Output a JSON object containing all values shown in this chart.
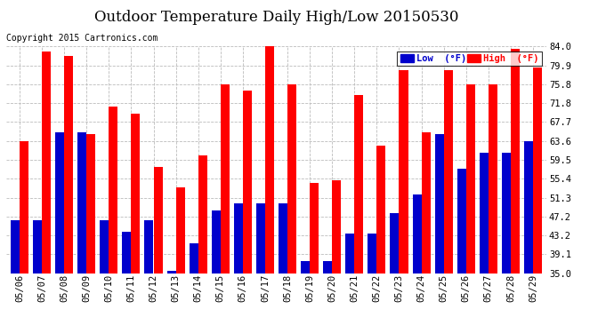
{
  "title": "Outdoor Temperature Daily High/Low 20150530",
  "copyright": "Copyright 2015 Cartronics.com",
  "legend_low": "Low  (°F)",
  "legend_high": "High  (°F)",
  "dates": [
    "05/06",
    "05/07",
    "05/08",
    "05/09",
    "05/10",
    "05/11",
    "05/12",
    "05/13",
    "05/14",
    "05/15",
    "05/16",
    "05/17",
    "05/18",
    "05/19",
    "05/20",
    "05/21",
    "05/22",
    "05/23",
    "05/24",
    "05/25",
    "05/26",
    "05/27",
    "05/28",
    "05/29"
  ],
  "high": [
    63.5,
    83.0,
    82.0,
    65.0,
    71.0,
    69.5,
    58.0,
    53.5,
    60.5,
    75.8,
    74.5,
    84.0,
    75.8,
    54.5,
    55.0,
    73.5,
    62.5,
    79.0,
    65.5,
    79.0,
    75.8,
    75.8,
    83.5,
    79.5
  ],
  "low": [
    46.5,
    46.5,
    65.5,
    65.5,
    46.5,
    44.0,
    46.5,
    35.5,
    41.5,
    48.5,
    50.0,
    50.0,
    50.0,
    37.5,
    37.5,
    43.5,
    43.5,
    48.0,
    52.0,
    65.0,
    57.5,
    61.0,
    61.0,
    63.5
  ],
  "ymin": 35.0,
  "ymax": 84.0,
  "yticks": [
    35.0,
    39.1,
    43.2,
    47.2,
    51.3,
    55.4,
    59.5,
    63.6,
    67.7,
    71.8,
    75.8,
    79.9,
    84.0
  ],
  "bg_color": "#ffffff",
  "plot_bg": "#ffffff",
  "bar_color_low": "#0000cc",
  "bar_color_high": "#ff0000",
  "grid_color": "#bbbbbb",
  "title_fontsize": 12,
  "tick_fontsize": 7.5,
  "copyright_fontsize": 7,
  "legend_fontsize": 7.5
}
